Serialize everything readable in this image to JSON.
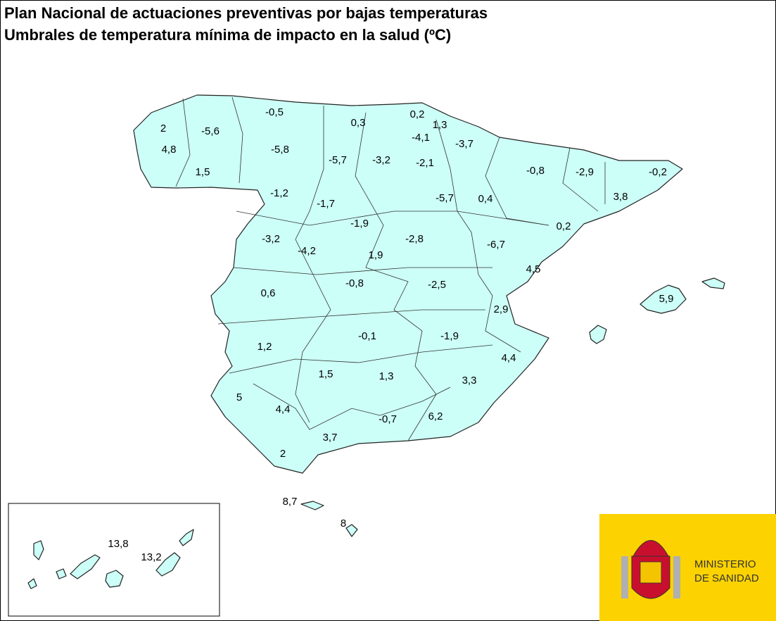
{
  "header": {
    "title": "Plan Nacional de actuaciones preventivas por bajas temperaturas",
    "subtitle": "Umbrales de temperatura mínima de impacto en la salud (ºC)"
  },
  "labels": [
    "-0,5",
    "0,3",
    "0,2",
    "1,3",
    "-4,1",
    "2",
    "-5,6",
    "-5,8",
    "-3,7",
    "4,8",
    "-5,7",
    "-3,2",
    "-2,1",
    "-0,8",
    "-2,9",
    "-0,2",
    "1,5",
    "-1,2",
    "-1,7",
    "-5,7",
    "0,4",
    "3,8",
    "-1,9",
    "0,2",
    "-3,2",
    "-2,8",
    "-4,2",
    "1,9",
    "-6,7",
    "4,5",
    "-0,8",
    "-2,5",
    "0,6",
    "5,9",
    "2,9",
    "-0,1",
    "-1,9",
    "1,2",
    "4,4",
    "1,5",
    "1,3",
    "3,3",
    "5",
    "4,4",
    "6,2",
    "-0,7",
    "3,7",
    "2",
    "8,7",
    "8",
    "13,8",
    "13,2"
  ],
  "logo": {
    "line1": "MINISTERIO",
    "line2": "DE SANIDAD"
  }
}
